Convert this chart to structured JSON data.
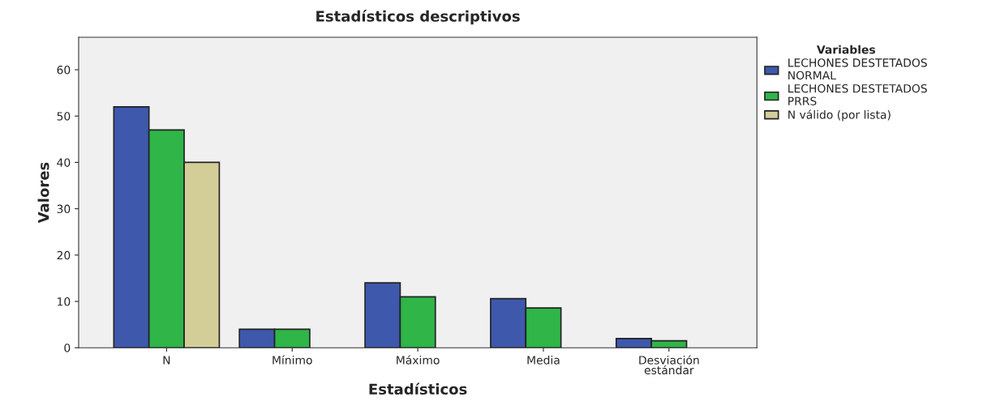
{
  "chart_data": {
    "type": "bar",
    "title": "Estadísticos descriptivos",
    "xlabel": "Estadísticos",
    "ylabel": "Valores",
    "legend_title": "Variables",
    "legend": "top right",
    "categories": [
      "N",
      "Mínimo",
      "Máximo",
      "Media",
      "Desviación\nestándar"
    ],
    "series": [
      {
        "name": "LECHONES DESTETADOS\nNORMAL",
        "color": "#3e58ac",
        "values": [
          52,
          4,
          14,
          10.6,
          2.0
        ]
      },
      {
        "name": "LECHONES DESTETADOS\nPRRS",
        "color": "#2fb548",
        "values": [
          47,
          4,
          11,
          8.6,
          1.5
        ]
      },
      {
        "name": "N válido (por lista)",
        "color": "#d3ce98",
        "values": [
          40,
          null,
          null,
          null,
          null
        ]
      }
    ],
    "ylim": [
      0,
      67
    ],
    "yticks": [
      0,
      10,
      20,
      30,
      40,
      50,
      60
    ],
    "grid": false
  }
}
